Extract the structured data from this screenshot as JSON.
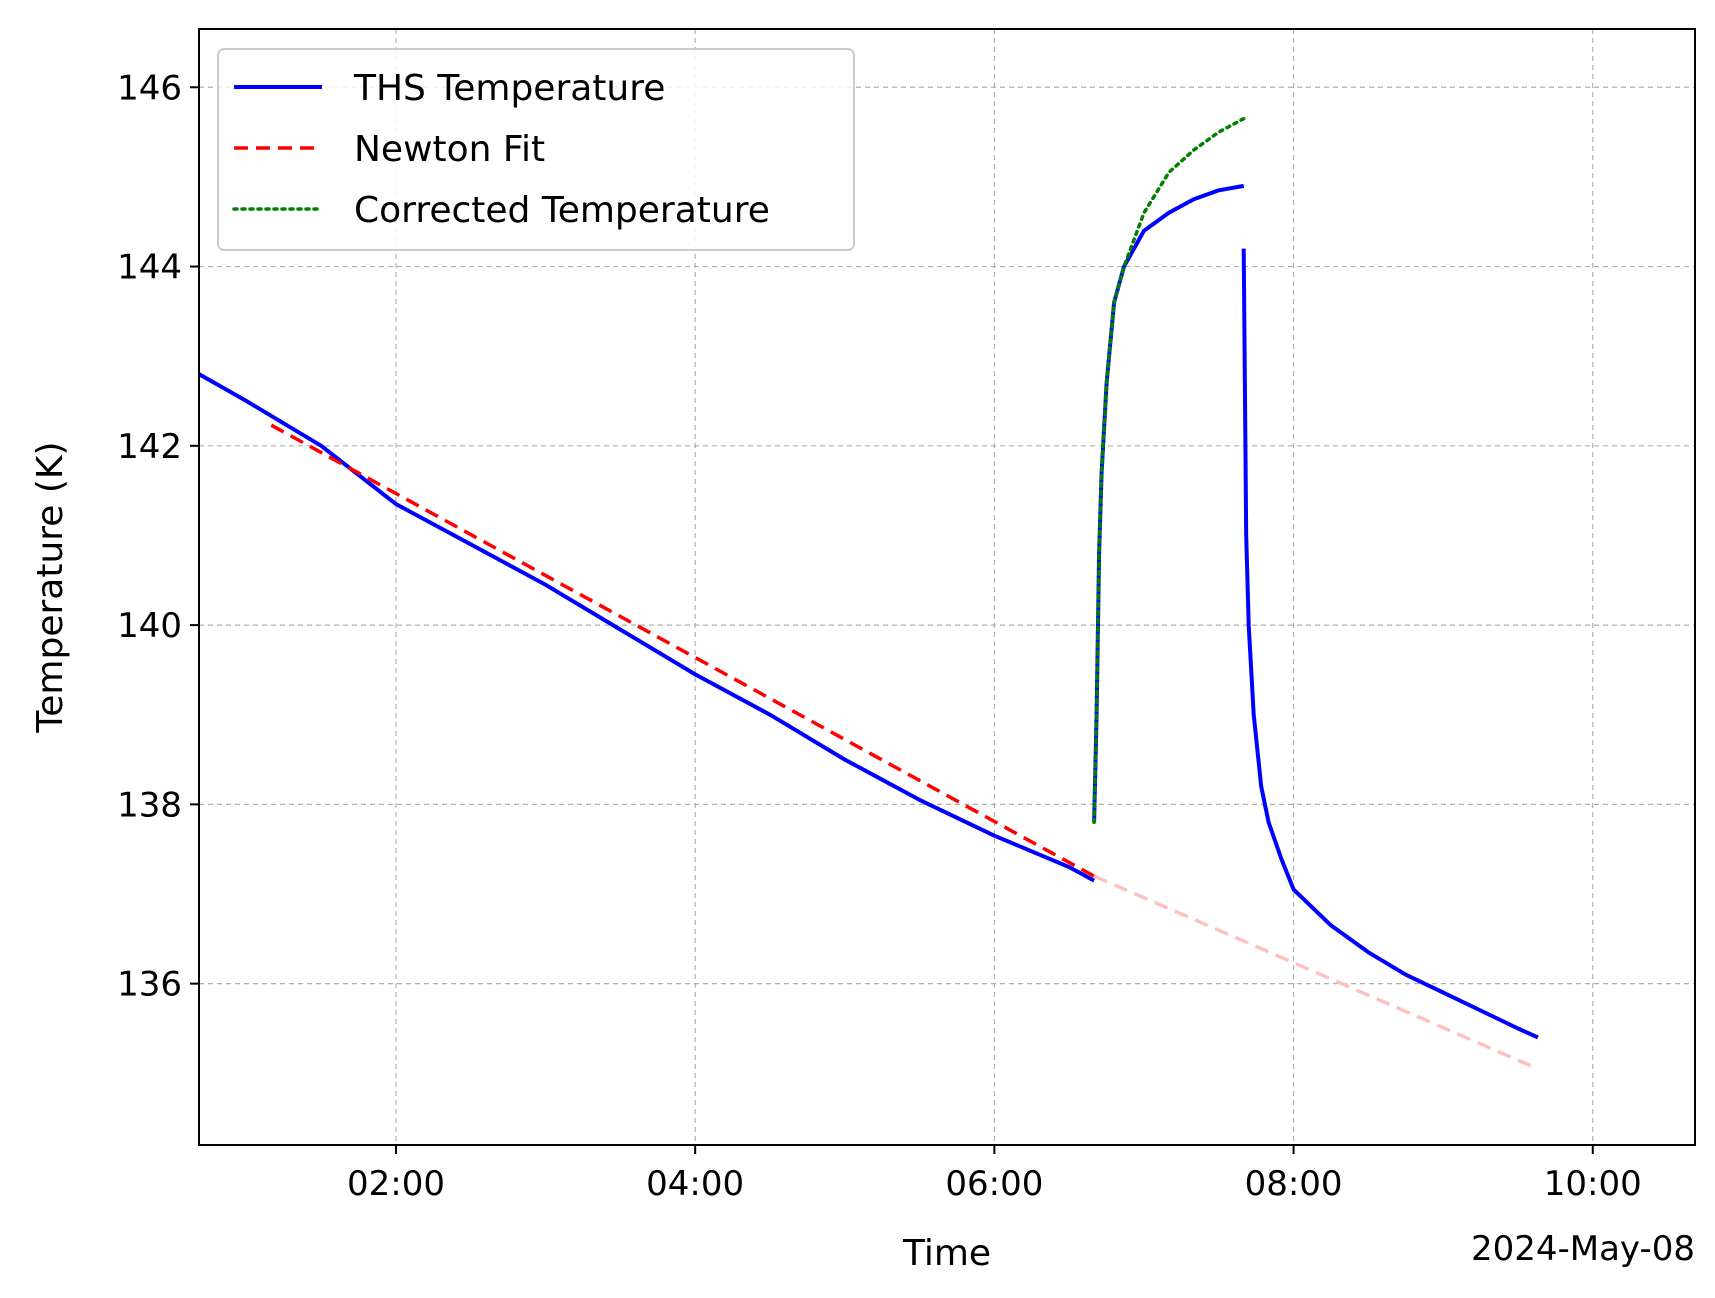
{
  "chart_data": {
    "type": "line",
    "title": "",
    "xlabel": "Time",
    "ylabel": "Temperature (K)",
    "date_label": "2024-May-08",
    "xlim": [
      "00:41",
      "10:41"
    ],
    "ylim": [
      134.2,
      146.65
    ],
    "x_ticks": [
      "02:00",
      "04:00",
      "06:00",
      "08:00",
      "10:00"
    ],
    "y_ticks": [
      "136",
      "138",
      "140",
      "142",
      "144",
      "146"
    ],
    "grid": true,
    "legend_position": "top-left",
    "series": [
      {
        "name": "THS Temperature",
        "style": "solid",
        "color": "#0000ff",
        "segments": [
          {
            "x": [
              "00:41",
              "01:00",
              "01:30",
              "02:00",
              "02:30",
              "03:00",
              "03:30",
              "04:00",
              "04:30",
              "05:00",
              "05:30",
              "06:00",
              "06:30",
              "06:40"
            ],
            "y": [
              142.8,
              142.5,
              142.0,
              141.35,
              140.9,
              140.45,
              139.95,
              139.45,
              139.0,
              138.5,
              138.05,
              137.65,
              137.3,
              137.15
            ]
          },
          {
            "x": [
              "06:40",
              "06:41",
              "06:42",
              "06:43",
              "06:45",
              "06:48",
              "06:52",
              "07:00",
              "07:10",
              "07:20",
              "07:30",
              "07:40"
            ],
            "y": [
              137.8,
              139.0,
              140.8,
              141.7,
              142.7,
              143.6,
              144.0,
              144.4,
              144.6,
              144.75,
              144.85,
              144.9
            ]
          },
          {
            "x": [
              "07:40",
              "07:41",
              "07:42",
              "07:44",
              "07:47",
              "07:50",
              "07:55",
              "08:00",
              "08:15",
              "08:30",
              "08:45",
              "09:00",
              "09:15",
              "09:30",
              "09:38"
            ],
            "y": [
              144.2,
              141.0,
              140.0,
              139.0,
              138.2,
              137.8,
              137.4,
              137.05,
              136.65,
              136.35,
              136.1,
              135.9,
              135.7,
              135.5,
              135.4
            ]
          }
        ]
      },
      {
        "name": "Newton Fit",
        "style": "dashed",
        "color": "#ff0000",
        "segments": [
          {
            "x": [
              "01:10",
              "06:40"
            ],
            "y": [
              142.23,
              137.2
            ]
          }
        ]
      },
      {
        "name": "",
        "style": "dashed",
        "color": "#ffc0c0",
        "segments": [
          {
            "x": [
              "06:40",
              "09:38"
            ],
            "y": [
              137.2,
              135.05
            ]
          }
        ]
      },
      {
        "name": "Corrected Temperature",
        "style": "dotted",
        "color": "#008000",
        "segments": [
          {
            "x": [
              "06:40",
              "06:41",
              "06:42",
              "06:43",
              "06:45",
              "06:48",
              "06:52",
              "07:00",
              "07:10",
              "07:20",
              "07:30",
              "07:40"
            ],
            "y": [
              137.8,
              139.0,
              140.8,
              141.7,
              142.7,
              143.6,
              144.0,
              144.6,
              145.05,
              145.3,
              145.5,
              145.65
            ]
          }
        ]
      }
    ]
  }
}
